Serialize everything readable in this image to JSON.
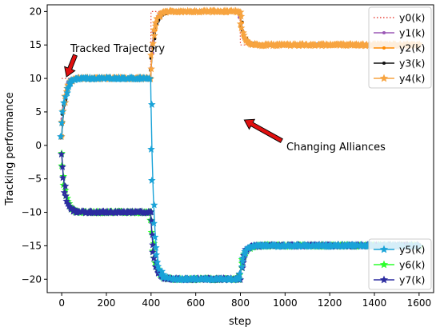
{
  "chart_data": {
    "type": "line",
    "title": "",
    "xlabel": "step",
    "ylabel": "Tracking performance",
    "xlim": [
      -65,
      1665
    ],
    "ylim": [
      -22,
      21
    ],
    "xticks": [
      0,
      200,
      400,
      600,
      800,
      1000,
      1200,
      1400,
      1600
    ],
    "yticks": [
      -20,
      -15,
      -10,
      -5,
      0,
      5,
      10,
      15,
      20
    ],
    "grid": false,
    "legend_upper": "upper-right",
    "legend_lower": "lower-right",
    "annotations": [
      {
        "text": "Tracked Trajectory",
        "point": [
          0,
          10
        ]
      },
      {
        "text": "Changing Alliances",
        "point": [
          810,
          3.8
        ]
      }
    ],
    "series": [
      {
        "name": "y0(k)",
        "color": "#e8453c",
        "style": "dotted",
        "marker": "none",
        "segments": [
          [
            0,
            10
          ],
          [
            400,
            20
          ],
          [
            800,
            15
          ],
          [
            1600,
            15
          ]
        ],
        "tau": 0
      },
      {
        "name": "y1(k)",
        "color": "#9b59b6",
        "style": "solid",
        "marker": "dot",
        "segments": [
          [
            0,
            10
          ],
          [
            400,
            20
          ],
          [
            800,
            15
          ],
          [
            1600,
            15
          ]
        ],
        "tau": 12
      },
      {
        "name": "y2(k)",
        "color": "#ff8a00",
        "style": "solid",
        "marker": "dot",
        "segments": [
          [
            0,
            10
          ],
          [
            400,
            20
          ],
          [
            800,
            15
          ],
          [
            1600,
            15
          ]
        ],
        "tau": 14
      },
      {
        "name": "y3(k)",
        "color": "#111111",
        "style": "solid",
        "marker": "dot",
        "segments": [
          [
            0,
            10
          ],
          [
            400,
            20
          ],
          [
            800,
            15
          ],
          [
            1600,
            15
          ]
        ],
        "tau": 16
      },
      {
        "name": "y4(k)",
        "color": "#f7a440",
        "style": "solid",
        "marker": "star",
        "segments": [
          [
            0,
            10
          ],
          [
            400,
            20
          ],
          [
            800,
            15
          ],
          [
            1600,
            15
          ]
        ],
        "tau": 14
      },
      {
        "name": "y5(k)",
        "color": "#1aa3d8",
        "style": "solid",
        "marker": "star",
        "segments": [
          [
            0,
            10
          ],
          [
            400,
            -20
          ],
          [
            800,
            -15
          ],
          [
            1600,
            -15
          ]
        ],
        "tau": 14
      },
      {
        "name": "y6(k)",
        "color": "#2dff2d",
        "style": "solid",
        "marker": "star",
        "segments": [
          [
            0,
            -10
          ],
          [
            400,
            -20
          ],
          [
            800,
            -15
          ],
          [
            1600,
            -15
          ]
        ],
        "tau": 16
      },
      {
        "name": "y7(k)",
        "color": "#2c2ca0",
        "style": "solid",
        "marker": "star",
        "segments": [
          [
            0,
            -10
          ],
          [
            400,
            -20
          ],
          [
            800,
            -15
          ],
          [
            1600,
            -15
          ]
        ],
        "tau": 15
      }
    ]
  }
}
